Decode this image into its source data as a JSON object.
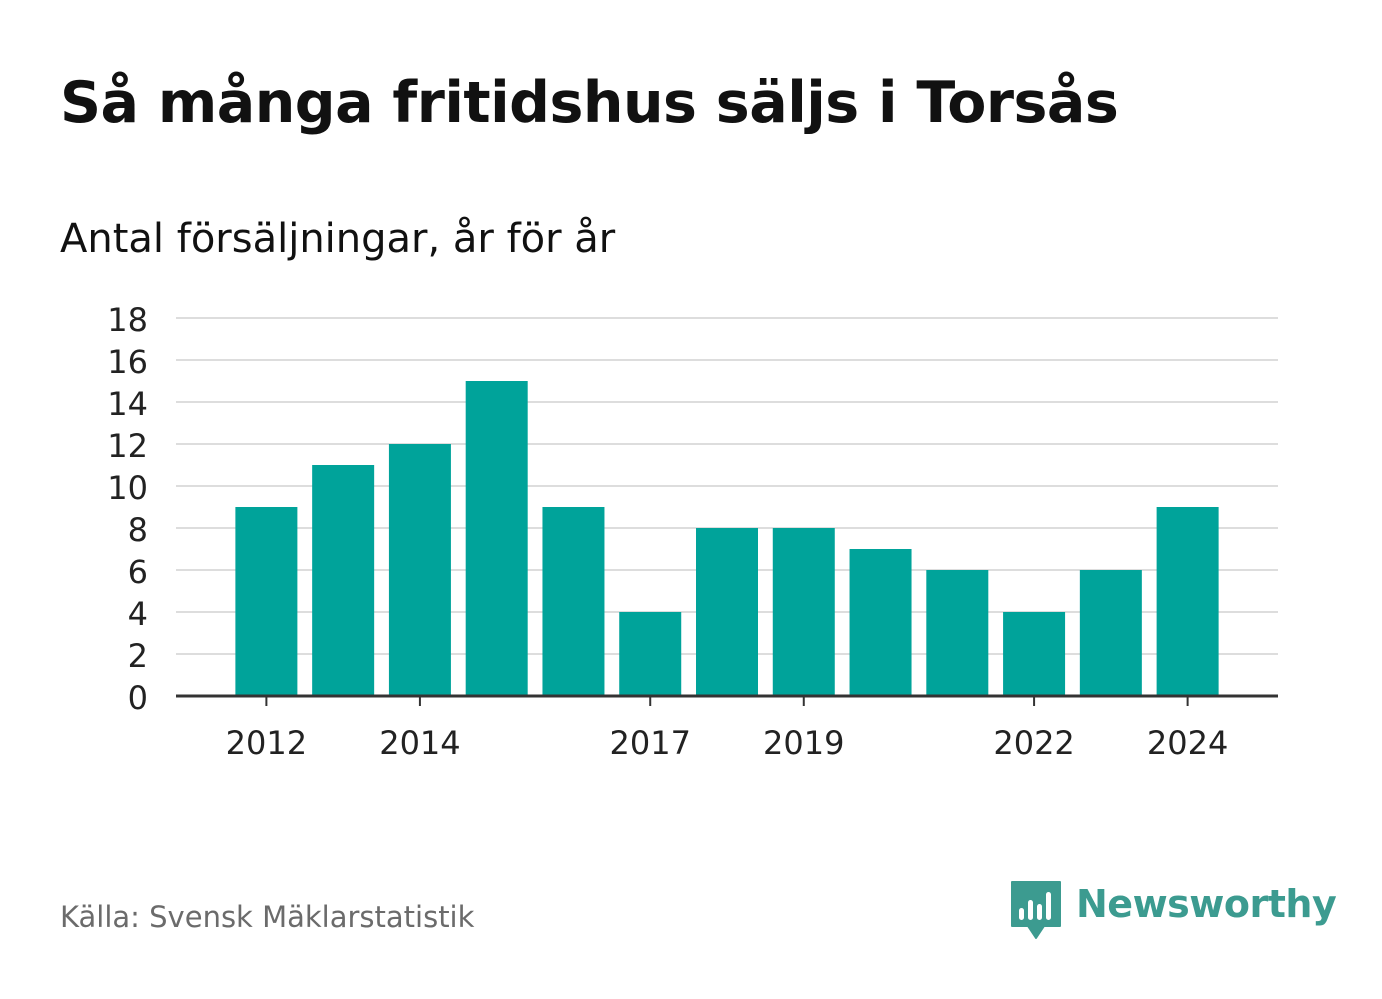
{
  "title": "Så många fritidshus säljs i Torsås",
  "subtitle": "Antal försäljningar, år för år",
  "source": "Källa: Svensk Mäklarstatistik",
  "logo": {
    "text": "Newsworthy",
    "icon": "newsworthy-bar-chart-logo"
  },
  "colors": {
    "bar": "#00A39A",
    "grid": "#dddddd",
    "axis": "#333333",
    "logo": "#3c9b90"
  },
  "chart_data": {
    "type": "bar",
    "categories": [
      "2012",
      "2013",
      "2014",
      "2015",
      "2016",
      "2017",
      "2018",
      "2019",
      "2020",
      "2021",
      "2022",
      "2023",
      "2024"
    ],
    "values": [
      9,
      11,
      12,
      15,
      9,
      4,
      8,
      8,
      7,
      6,
      4,
      6,
      9
    ],
    "x_tick_labels": [
      "2012",
      "2014",
      "2017",
      "2019",
      "2022",
      "2024"
    ],
    "y_ticks": [
      0,
      2,
      4,
      6,
      8,
      10,
      12,
      14,
      16,
      18
    ],
    "ylim": [
      0,
      18
    ],
    "xlabel": "",
    "ylabel": "",
    "grid": true,
    "legend": "none"
  }
}
